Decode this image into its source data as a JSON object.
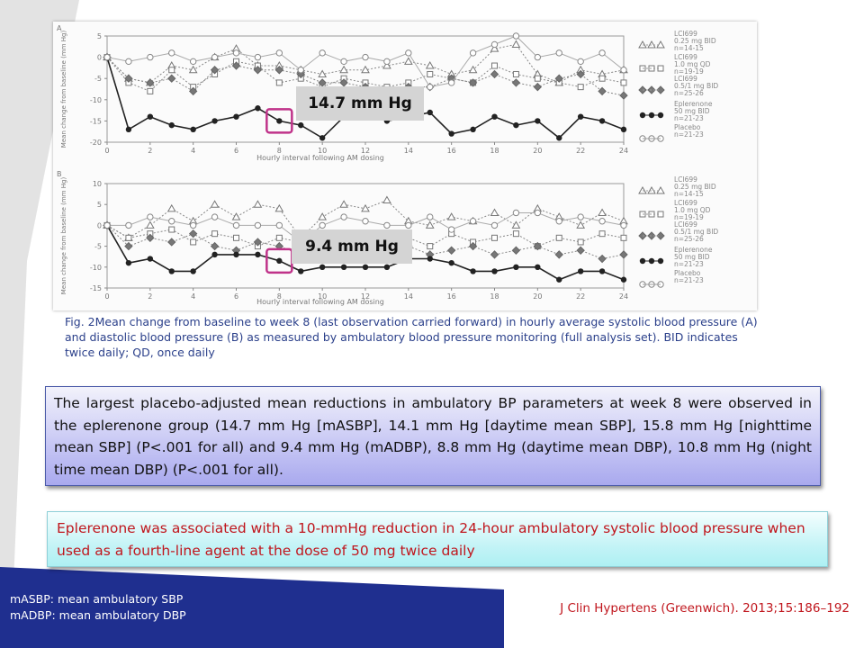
{
  "colors": {
    "accent_navy": "#1f2f8f",
    "callout_marker": "#c0338a",
    "box1_text": "#111111",
    "box2_text": "#c0161d",
    "caption_text": "#2a3f8a"
  },
  "chart_data": [
    {
      "type": "line",
      "panel": "A",
      "xlabel": "Hourly interval following AM dosing",
      "ylabel": "Mean change from baseline (mm Hg)",
      "xlim": [
        0,
        24
      ],
      "ylim": [
        -20,
        5
      ],
      "xticks": [
        0,
        2,
        4,
        6,
        8,
        10,
        12,
        14,
        16,
        18,
        20,
        22,
        24
      ],
      "yticks": [
        5,
        0,
        -5,
        -10,
        -15,
        -20
      ],
      "legend_position": "right",
      "series": [
        {
          "name": "LCI699 0.25 mg BID n=14-15",
          "marker": "triangle",
          "line": "dotted",
          "x": [
            0,
            1,
            2,
            3,
            4,
            5,
            6,
            7,
            8,
            9,
            10,
            11,
            12,
            13,
            14,
            15,
            16,
            17,
            18,
            19,
            20,
            21,
            22,
            23,
            24
          ],
          "y": [
            0,
            -5,
            -6,
            -2,
            -3,
            0,
            2,
            -2,
            -2,
            -3,
            -4,
            -3,
            -3,
            -2,
            -1,
            -2,
            -4,
            -3,
            2,
            3,
            -4,
            -6,
            -3,
            -4,
            -3
          ]
        },
        {
          "name": "LCI699 1.0 mg QD n=19-19",
          "marker": "square",
          "line": "dotted",
          "x": [
            0,
            1,
            2,
            3,
            4,
            5,
            6,
            7,
            8,
            9,
            10,
            11,
            12,
            13,
            14,
            15,
            16,
            17,
            18,
            19,
            20,
            21,
            22,
            23,
            24
          ],
          "y": [
            0,
            -6,
            -8,
            -3,
            -7,
            -4,
            -1,
            -2,
            -6,
            -5,
            -7,
            -5,
            -6,
            -7,
            -6,
            -4,
            -5,
            -6,
            -2,
            -4,
            -5,
            -6,
            -7,
            -5,
            -6
          ]
        },
        {
          "name": "LCI699 0.5/1 mg BID n=25-26",
          "marker": "diamond",
          "line": "dotted",
          "x": [
            0,
            1,
            2,
            3,
            4,
            5,
            6,
            7,
            8,
            9,
            10,
            11,
            12,
            13,
            14,
            15,
            16,
            17,
            18,
            19,
            20,
            21,
            22,
            23,
            24
          ],
          "y": [
            0,
            -5,
            -6,
            -5,
            -8,
            -3,
            -2,
            -3,
            -3,
            -4,
            -6,
            -6,
            -7,
            -8,
            -7,
            -7,
            -5,
            -6,
            -4,
            -6,
            -7,
            -5,
            -4,
            -8,
            -9
          ]
        },
        {
          "name": "Eplerenone 50 mg BID n=21-23",
          "marker": "filled-circle",
          "line": "solid",
          "x": [
            0,
            1,
            2,
            3,
            4,
            5,
            6,
            7,
            8,
            9,
            10,
            11,
            12,
            13,
            14,
            15,
            16,
            17,
            18,
            19,
            20,
            21,
            22,
            23,
            24
          ],
          "y": [
            0,
            -17,
            -14,
            -16,
            -17,
            -15,
            -14,
            -12,
            -15,
            -16,
            -19,
            -14,
            -13,
            -15,
            -14,
            -13,
            -18,
            -17,
            -14,
            -16,
            -15,
            -19,
            -14,
            -15,
            -17
          ]
        },
        {
          "name": "Placebo n=21-23",
          "marker": "open-circle",
          "line": "thin-solid",
          "x": [
            0,
            1,
            2,
            3,
            4,
            5,
            6,
            7,
            8,
            9,
            10,
            11,
            12,
            13,
            14,
            15,
            16,
            17,
            18,
            19,
            20,
            21,
            22,
            23,
            24
          ],
          "y": [
            0,
            -1,
            0,
            1,
            -1,
            0,
            1,
            0,
            1,
            -3,
            1,
            -1,
            0,
            -1,
            1,
            -7,
            -6,
            1,
            3,
            5,
            0,
            1,
            -1,
            1,
            -3
          ]
        }
      ],
      "annotation": {
        "label": "14.7 mm Hg",
        "x": 8
      }
    },
    {
      "type": "line",
      "panel": "B",
      "xlabel": "Hourly interval following AM dosing",
      "ylabel": "Mean change from baseline (mm Hg)",
      "xlim": [
        0,
        24
      ],
      "ylim": [
        -15,
        10
      ],
      "xticks": [
        0,
        2,
        4,
        6,
        8,
        10,
        12,
        14,
        16,
        18,
        20,
        22,
        24
      ],
      "yticks": [
        10,
        5,
        0,
        -5,
        -10,
        -15
      ],
      "legend_position": "right",
      "series": [
        {
          "name": "LCI699 0.25 mg BID n=14-15",
          "marker": "triangle",
          "line": "dotted",
          "x": [
            0,
            1,
            2,
            3,
            4,
            5,
            6,
            7,
            8,
            9,
            10,
            11,
            12,
            13,
            14,
            15,
            16,
            17,
            18,
            19,
            20,
            21,
            22,
            23,
            24
          ],
          "y": [
            0,
            -3,
            0,
            4,
            1,
            5,
            2,
            5,
            4,
            -3,
            2,
            5,
            4,
            6,
            1,
            0,
            2,
            1,
            3,
            0,
            4,
            2,
            0,
            3,
            1
          ]
        },
        {
          "name": "LCI699 1.0 mg QD n=19-19",
          "marker": "square",
          "line": "dotted",
          "x": [
            0,
            1,
            2,
            3,
            4,
            5,
            6,
            7,
            8,
            9,
            10,
            11,
            12,
            13,
            14,
            15,
            16,
            17,
            18,
            19,
            20,
            21,
            22,
            23,
            24
          ],
          "y": [
            0,
            -3,
            -2,
            -1,
            -4,
            -2,
            -3,
            -5,
            -3,
            -4,
            -5,
            -2,
            -3,
            -4,
            -3,
            -5,
            -2,
            -4,
            -3,
            -2,
            -5,
            -3,
            -4,
            -2,
            -3
          ]
        },
        {
          "name": "LCI699 0.5/1 mg BID n=25-26",
          "marker": "diamond",
          "line": "dotted",
          "x": [
            0,
            1,
            2,
            3,
            4,
            5,
            6,
            7,
            8,
            9,
            10,
            11,
            12,
            13,
            14,
            15,
            16,
            17,
            18,
            19,
            20,
            21,
            22,
            23,
            24
          ],
          "y": [
            0,
            -5,
            -3,
            -4,
            -2,
            -5,
            -6,
            -4,
            -5,
            -7,
            -6,
            -5,
            -4,
            -6,
            -5,
            -7,
            -6,
            -5,
            -7,
            -6,
            -5,
            -7,
            -6,
            -8,
            -7
          ]
        },
        {
          "name": "Eplerenone 50 mg BID n=21-23",
          "marker": "filled-circle",
          "line": "solid",
          "x": [
            0,
            1,
            2,
            3,
            4,
            5,
            6,
            7,
            8,
            9,
            10,
            11,
            12,
            13,
            14,
            15,
            16,
            17,
            18,
            19,
            20,
            21,
            22,
            23,
            24
          ],
          "y": [
            0,
            -9,
            -8,
            -11,
            -11,
            -7,
            -7,
            -7,
            -8.5,
            -11,
            -10,
            -10,
            -10,
            -10,
            -8,
            -8,
            -9,
            -11,
            -11,
            -10,
            -10,
            -13,
            -11,
            -11,
            -13
          ]
        },
        {
          "name": "Placebo n=21-23",
          "marker": "open-circle",
          "line": "thin-solid",
          "x": [
            0,
            1,
            2,
            3,
            4,
            5,
            6,
            7,
            8,
            9,
            10,
            11,
            12,
            13,
            14,
            15,
            16,
            17,
            18,
            19,
            20,
            21,
            22,
            23,
            24
          ],
          "y": [
            0,
            0,
            2,
            1,
            0,
            2,
            0,
            0,
            0,
            -4,
            0,
            2,
            1,
            0,
            0,
            2,
            -1,
            1,
            0,
            3,
            3,
            1,
            2,
            1,
            0
          ]
        }
      ],
      "annotation": {
        "label": "9.4 mm Hg",
        "x": 8
      }
    }
  ],
  "caption": "Fig. 2Mean change from baseline to week 8 (last observation carried forward) in hourly average systolic blood pressure (A) and diastolic blood pressure (B) as measured by ambulatory blood pressure monitoring (full analysis set). BID indicates twice daily; QD, once daily",
  "summary_box": "The largest placebo-adjusted mean reductions in ambulatory BP parameters at week 8 were observed in the eplerenone group (14.7 mm Hg [mASBP], 14.1 mm Hg [daytime mean SBP], 15.8 mm Hg [nighttime mean SBP] (P<.001 for all) and 9.4 mm Hg (mADBP), 8.8 mm Hg (daytime mean DBP), 10.8 mm Hg (night time mean DBP) (P<.001 for all).",
  "conclusion_box": "Eplerenone was associated with a 10-mmHg reduction in 24-hour ambulatory systolic blood pressure when used as a fourth-line agent at the dose of 50 mg twice daily",
  "abbreviations": [
    "mASBP: mean ambulatory SBP",
    "mADBP: mean ambulatory DBP"
  ],
  "citation": "J Clin Hypertens (Greenwich). 2013;15:186–192"
}
